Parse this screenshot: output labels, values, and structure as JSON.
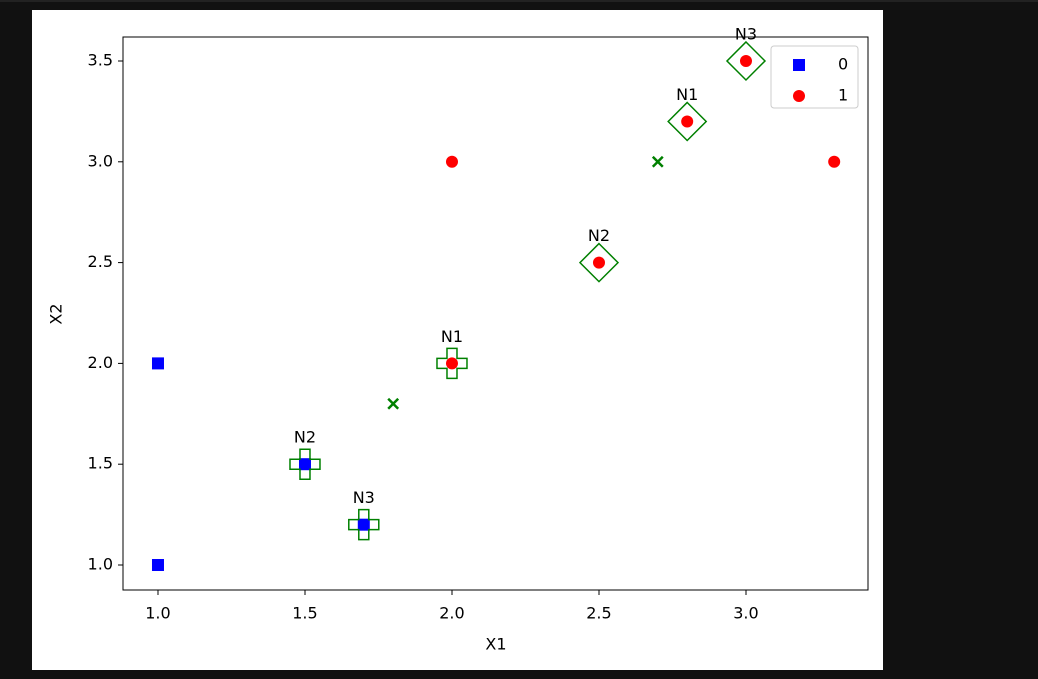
{
  "chart_data": {
    "type": "scatter",
    "xlabel": "X1",
    "ylabel": "X2",
    "xlim": [
      0.881,
      3.415
    ],
    "ylim": [
      0.876,
      3.619
    ],
    "xticks": [
      {
        "value": 1.0,
        "label": "1.0"
      },
      {
        "value": 1.5,
        "label": "1.5"
      },
      {
        "value": 2.0,
        "label": "2.0"
      },
      {
        "value": 2.5,
        "label": "2.5"
      },
      {
        "value": 3.0,
        "label": "3.0"
      }
    ],
    "yticks": [
      {
        "value": 1.0,
        "label": "1.0"
      },
      {
        "value": 1.5,
        "label": "1.5"
      },
      {
        "value": 2.0,
        "label": "2.0"
      },
      {
        "value": 2.5,
        "label": "2.5"
      },
      {
        "value": 3.0,
        "label": "3.0"
      },
      {
        "value": 3.5,
        "label": "3.5"
      }
    ],
    "legend": "upper right",
    "series": [
      {
        "name": "0",
        "color": "blue",
        "marker": "square",
        "x": [
          1,
          1,
          1.5,
          1.7
        ],
        "values": [
          1,
          2,
          1.5,
          1.2
        ]
      },
      {
        "name": "1",
        "color": "red",
        "marker": "circle",
        "x": [
          2,
          2,
          2.5,
          2.8,
          3,
          3.3
        ],
        "values": [
          2,
          3,
          2.5,
          3.2,
          3.5,
          3
        ]
      }
    ],
    "markers": {
      "color": "green",
      "marker": "x",
      "x": [
        1.8,
        2.7
      ],
      "values": [
        1.8,
        3.0
      ]
    },
    "annotations": [
      {
        "text": "N1",
        "x": 2,
        "y": 2,
        "marker": "plus"
      },
      {
        "text": "N2",
        "x": 1.5,
        "y": 1.5,
        "marker": "plus"
      },
      {
        "text": "N3",
        "x": 1.7,
        "y": 1.2,
        "marker": "plus"
      },
      {
        "text": "N1",
        "x": 2.8,
        "y": 3.2,
        "marker": "diamond"
      },
      {
        "text": "N2",
        "x": 2.5,
        "y": 2.5,
        "marker": "diamond"
      },
      {
        "text": "N3",
        "x": 3,
        "y": 3.5,
        "marker": "diamond"
      }
    ],
    "annotation_color": "green"
  }
}
